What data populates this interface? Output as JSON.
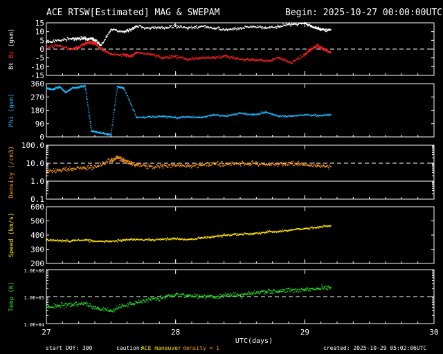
{
  "title": "ACE RTSW[Estimated] MAG & SWEPAM",
  "begin": "Begin: 2025-10-27 00:00:00UTC",
  "footer": {
    "start_doy": "start DOY: 300",
    "caution": "caution:",
    "maneuver": "ACE maneuver",
    "density_note": "density < 1",
    "created": "created: 2025-10-29 05:02:06UTC"
  },
  "colors": {
    "white": "#ffffff",
    "red": "#ff2020",
    "cyan": "#1ab8ff",
    "orange": "#ff9a1a",
    "yellow": "#ffe400",
    "green": "#22e022",
    "maneuver": "#ffe400",
    "density": "#ff9a1a"
  },
  "chart_data": [
    {
      "type": "scatter",
      "id": "mag",
      "ylabel": [
        "Bt",
        "Bz",
        "(gsm)"
      ],
      "ylabel_colors": [
        "#ffffff",
        "#ff2020",
        "#ffffff"
      ],
      "ylim": [
        -15,
        15
      ],
      "yticks": [
        15,
        10,
        5,
        0,
        -5,
        -10,
        -15
      ],
      "ytick_labels": [
        "15",
        "10",
        "5",
        "0",
        "-5",
        "-10",
        "-15"
      ],
      "ref_line": 0,
      "series": [
        {
          "name": "Bt",
          "color": "#ffffff",
          "x": [
            27.0,
            27.1,
            27.2,
            27.25,
            27.3,
            27.35,
            27.38,
            27.42,
            27.5,
            27.6,
            27.65,
            27.7,
            27.8,
            27.9,
            28.0,
            28.1,
            28.2,
            28.3,
            28.4,
            28.5,
            28.6,
            28.7,
            28.8,
            28.9,
            29.0,
            29.05,
            29.1,
            29.15,
            29.2
          ],
          "y": [
            4,
            5,
            6,
            6,
            6,
            6,
            5,
            2,
            11,
            10,
            11,
            13,
            12,
            12,
            13,
            12,
            13,
            12,
            11,
            12,
            13,
            12,
            13,
            14,
            15,
            13,
            12,
            11,
            11
          ]
        },
        {
          "name": "Bz",
          "color": "#ff2020",
          "x": [
            27.0,
            27.1,
            27.2,
            27.25,
            27.3,
            27.35,
            27.38,
            27.42,
            27.5,
            27.6,
            27.65,
            27.7,
            27.8,
            27.9,
            28.0,
            28.1,
            28.2,
            28.3,
            28.4,
            28.5,
            28.6,
            28.7,
            28.8,
            28.9,
            29.0,
            29.05,
            29.1,
            29.15,
            29.2
          ],
          "y": [
            1,
            2,
            0,
            1,
            3,
            4,
            3,
            0,
            -3,
            -3,
            -4,
            -2,
            -3,
            -5,
            -4,
            -6,
            -5,
            -5,
            -4,
            -6,
            -6,
            -7,
            -5,
            -8,
            -3,
            0,
            2,
            0,
            -2
          ]
        }
      ]
    },
    {
      "type": "scatter",
      "id": "phi",
      "ylabel": [
        "Phi (gsm)"
      ],
      "ylabel_colors": [
        "#1ab8ff"
      ],
      "ylim": [
        0,
        360
      ],
      "yticks": [
        360,
        270,
        180,
        90,
        0
      ],
      "ytick_labels": [
        "360",
        "270",
        "180",
        "90",
        "0"
      ],
      "series": [
        {
          "name": "Phi",
          "color": "#1ab8ff",
          "x": [
            27.0,
            27.05,
            27.1,
            27.15,
            27.2,
            27.25,
            27.3,
            27.35,
            27.4,
            27.45,
            27.5,
            27.55,
            27.6,
            27.7,
            27.8,
            27.9,
            28.0,
            28.1,
            28.2,
            28.3,
            28.4,
            28.5,
            28.6,
            28.7,
            28.8,
            28.9,
            29.0,
            29.1,
            29.2
          ],
          "y": [
            330,
            320,
            340,
            300,
            330,
            335,
            345,
            40,
            30,
            20,
            15,
            340,
            330,
            130,
            135,
            140,
            130,
            135,
            130,
            150,
            140,
            160,
            150,
            165,
            140,
            140,
            150,
            145,
            150
          ]
        }
      ]
    },
    {
      "type": "scatter",
      "id": "density",
      "ylabel": [
        "Density (/cm3)"
      ],
      "ylabel_colors": [
        "#ff9a1a"
      ],
      "ylim": [
        0.1,
        100
      ],
      "yscale": "log",
      "yticks": [
        100,
        10,
        1,
        0.1
      ],
      "ytick_labels": [
        "100.0",
        "10.0",
        "1.0",
        "0.1"
      ],
      "ref_line": 10,
      "ref_line_solid": 1,
      "series": [
        {
          "name": "Density",
          "color": "#ff9a1a",
          "x": [
            27.0,
            27.1,
            27.2,
            27.3,
            27.4,
            27.5,
            27.55,
            27.6,
            27.65,
            27.7,
            27.8,
            27.9,
            28.0,
            28.1,
            28.2,
            28.3,
            28.4,
            28.5,
            28.6,
            28.7,
            28.8,
            28.9,
            29.0,
            29.1,
            29.2
          ],
          "y": [
            3.5,
            4.2,
            5.0,
            5.2,
            6.5,
            14,
            20,
            15,
            10,
            8,
            6.5,
            7,
            7.5,
            7,
            8,
            9,
            8.5,
            9,
            10,
            8.5,
            9,
            9.5,
            8,
            7,
            6.5
          ]
        }
      ]
    },
    {
      "type": "scatter",
      "id": "speed",
      "ylabel": [
        "Speed (km/s)"
      ],
      "ylabel_colors": [
        "#ffe400"
      ],
      "ylim": [
        200,
        600
      ],
      "yticks": [
        600,
        500,
        400,
        300,
        200
      ],
      "ytick_labels": [
        "600",
        "500",
        "400",
        "300",
        "200"
      ],
      "series": [
        {
          "name": "Speed",
          "color": "#ffe400",
          "x": [
            27.0,
            27.1,
            27.2,
            27.3,
            27.4,
            27.5,
            27.6,
            27.7,
            27.8,
            27.9,
            28.0,
            28.1,
            28.2,
            28.3,
            28.4,
            28.5,
            28.6,
            28.7,
            28.8,
            28.9,
            29.0,
            29.1,
            29.2
          ],
          "y": [
            365,
            360,
            360,
            365,
            355,
            355,
            365,
            370,
            365,
            370,
            375,
            370,
            380,
            390,
            400,
            405,
            410,
            420,
            425,
            435,
            445,
            455,
            465
          ]
        }
      ]
    },
    {
      "type": "scatter",
      "id": "temp",
      "ylabel": [
        "Temp (K)"
      ],
      "ylabel_colors": [
        "#22e022"
      ],
      "ylim": [
        10000,
        1000000
      ],
      "yscale": "log",
      "yticks": [
        1000000,
        100000,
        10000
      ],
      "ytick_labels": [
        "1.0E+06",
        "1.0E+05",
        "1.0E+04"
      ],
      "ref_line": 100000,
      "series": [
        {
          "name": "Temp",
          "color": "#22e022",
          "x": [
            27.0,
            27.1,
            27.2,
            27.3,
            27.4,
            27.5,
            27.6,
            27.7,
            27.8,
            27.9,
            28.0,
            28.1,
            28.2,
            28.3,
            28.4,
            28.5,
            28.6,
            28.7,
            28.8,
            28.9,
            29.0,
            29.1,
            29.2
          ],
          "y": [
            40000,
            45000,
            50000,
            55000,
            35000,
            30000,
            45000,
            60000,
            80000,
            90000,
            120000,
            110000,
            100000,
            95000,
            120000,
            110000,
            140000,
            150000,
            160000,
            170000,
            180000,
            200000,
            220000
          ]
        }
      ]
    }
  ],
  "xaxis": {
    "xlim": [
      27,
      30
    ],
    "ticks": [
      27,
      28,
      29,
      30
    ],
    "tick_labels": [
      "27",
      "28",
      "29",
      "30"
    ],
    "xlabel": "UTC(days)"
  }
}
